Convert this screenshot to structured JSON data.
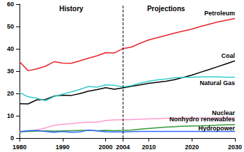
{
  "chart_data": {
    "type": "line",
    "x": [
      1980,
      1982,
      1984,
      1986,
      1988,
      1990,
      1992,
      1994,
      1996,
      1998,
      2000,
      2002,
      2004,
      2006,
      2008,
      2010,
      2012,
      2014,
      2016,
      2018,
      2020,
      2022,
      2024,
      2026,
      2028,
      2030
    ],
    "series": [
      {
        "name": "Petroleum",
        "color": "#e8242a",
        "values": [
          34.2,
          30.2,
          31.0,
          32.2,
          34.2,
          33.6,
          33.5,
          34.6,
          35.8,
          36.9,
          38.3,
          38.1,
          40.1,
          40.8,
          42.5,
          44.0,
          45.0,
          46.0,
          47.0,
          48.0,
          48.8,
          50.0,
          51.0,
          52.0,
          52.8,
          53.6
        ]
      },
      {
        "name": "Coal",
        "color": "#000000",
        "values": [
          15.4,
          15.3,
          17.1,
          17.3,
          18.8,
          19.2,
          19.1,
          19.9,
          21.0,
          21.7,
          22.6,
          21.9,
          22.5,
          23.2,
          23.8,
          24.5,
          25.0,
          25.5,
          26.2,
          27.2,
          28.2,
          29.5,
          30.7,
          32.0,
          33.3,
          34.6
        ]
      },
      {
        "name": "Natural Gas",
        "color": "#33cccc",
        "values": [
          20.4,
          18.5,
          17.9,
          16.7,
          18.6,
          19.7,
          20.7,
          21.8,
          23.1,
          22.8,
          23.8,
          23.7,
          22.9,
          23.5,
          24.6,
          25.5,
          26.1,
          26.5,
          27.0,
          27.2,
          27.3,
          27.4,
          27.4,
          27.4,
          27.3,
          27.3
        ]
      },
      {
        "name": "Nuclear",
        "color": "#ff99cc",
        "values": [
          2.7,
          3.1,
          3.6,
          4.5,
          5.7,
          6.2,
          6.5,
          6.9,
          7.1,
          7.1,
          7.9,
          8.1,
          8.2,
          8.3,
          8.4,
          8.6,
          8.7,
          8.8,
          8.9,
          9.0,
          9.0,
          9.0,
          9.0,
          9.0,
          9.0,
          9.0
        ]
      },
      {
        "name": "Nonhydro renewables",
        "color": "#339933",
        "values": [
          2.8,
          3.0,
          3.1,
          3.2,
          3.1,
          3.2,
          3.3,
          3.4,
          3.4,
          3.3,
          3.4,
          3.3,
          3.4,
          3.6,
          4.0,
          4.3,
          4.6,
          4.9,
          5.1,
          5.3,
          5.4,
          5.5,
          5.6,
          5.8,
          5.9,
          6.0
        ]
      },
      {
        "name": "Hydropower",
        "color": "#3366ff",
        "values": [
          2.9,
          3.3,
          3.4,
          3.0,
          2.6,
          3.0,
          2.6,
          2.7,
          3.6,
          3.2,
          2.8,
          2.7,
          2.7,
          2.9,
          3.0,
          3.0,
          3.0,
          3.0,
          3.0,
          3.0,
          3.0,
          3.0,
          3.0,
          3.0,
          3.0,
          3.0
        ]
      }
    ],
    "xlim": [
      1980,
      2030
    ],
    "xticks": [
      1980,
      1990,
      2000,
      2004,
      2010,
      2020,
      2030
    ],
    "ylim": [
      0,
      60
    ],
    "yticks": [
      0,
      10,
      20,
      30,
      40,
      50,
      60
    ],
    "divider": 2004,
    "annotations": [
      {
        "text": "History",
        "x": 1992,
        "y": 58
      },
      {
        "text": "Projections",
        "x": 2014,
        "y": 58
      }
    ],
    "grid": false
  }
}
